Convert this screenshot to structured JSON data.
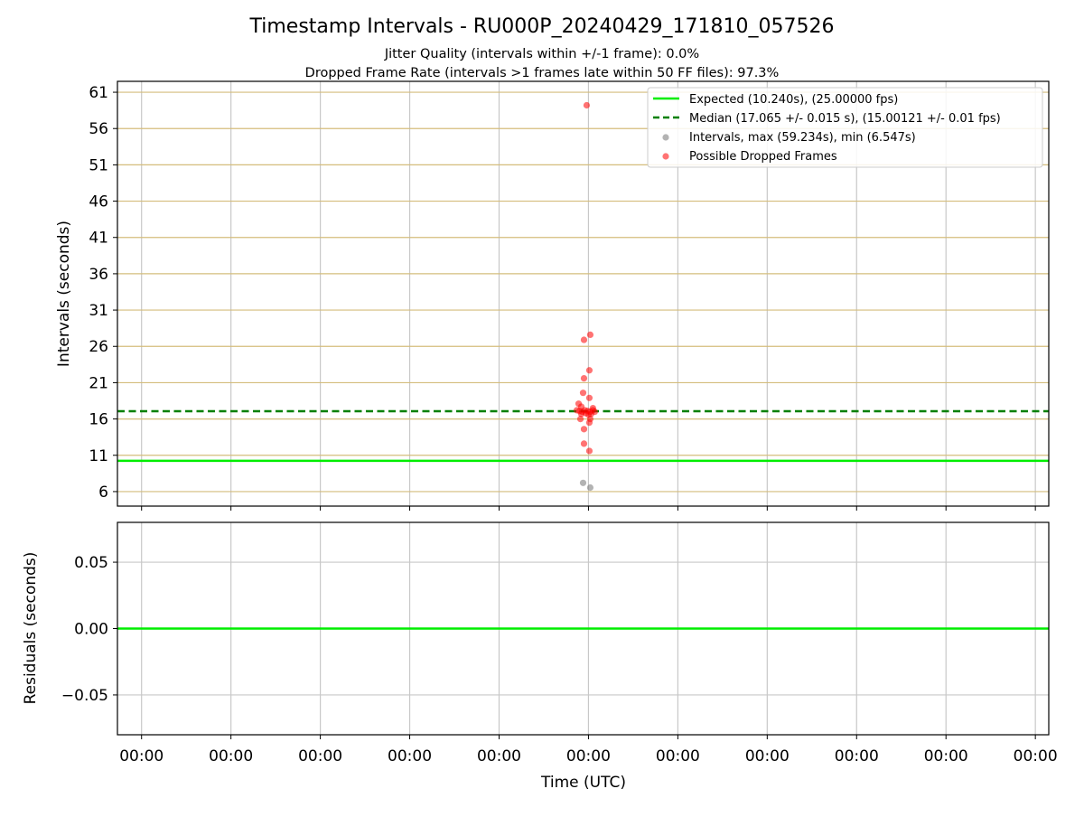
{
  "title": "Timestamp Intervals - RU000P_20240429_171810_057526",
  "subtitle1": "Jitter Quality (intervals within +/-1 frame): 0.0%",
  "subtitle2": "Dropped Frame Rate (intervals >1 frames late within 50 FF files): 97.3%",
  "colors": {
    "expected": "#00ee00",
    "median": "#008000",
    "intervals": "#808080",
    "dropped": "#ff0000",
    "ygrid_top": "#d4bd7c",
    "grid": "#c8c8c8"
  },
  "chart_data": [
    {
      "type": "scatter",
      "ylabel": "Intervals (seconds)",
      "ylim": [
        4,
        62.5
      ],
      "yticks": [
        6,
        11,
        16,
        21,
        26,
        31,
        36,
        41,
        46,
        51,
        56,
        61
      ],
      "ytick_labels": [
        "6",
        "11",
        "16",
        "21",
        "26",
        "31",
        "36",
        "41",
        "46",
        "51",
        "56",
        "61"
      ],
      "xticks": [
        0,
        1,
        2,
        3,
        4,
        5,
        6,
        7,
        8,
        9,
        10
      ],
      "xtick_labels": [
        "00:00",
        "00:00",
        "00:00",
        "00:00",
        "00:00",
        "00:00",
        "00:00",
        "00:00",
        "00:00",
        "00:00",
        "00:00"
      ],
      "xlim": [
        -0.27,
        10.15
      ],
      "legend_position": "top-right",
      "grid": true,
      "hlines": [
        {
          "name": "Expected (10.240s), (25.00000 fps)",
          "y": 10.24,
          "style": "solid",
          "color": "#00ee00"
        },
        {
          "name": "Median (17.065 +/- 0.015 s), (15.00121 +/- 0.01 fps)",
          "y": 17.065,
          "style": "dashed",
          "color": "#008000"
        }
      ],
      "series": [
        {
          "name": "Intervals, max (59.234s), min (6.547s)",
          "color": "#808080",
          "points": [
            [
              4.94,
              7.2
            ],
            [
              5.02,
              6.55
            ]
          ]
        },
        {
          "name": "Possible Dropped Frames",
          "color": "#ff0000",
          "points": [
            [
              4.98,
              59.2
            ],
            [
              4.95,
              26.9
            ],
            [
              5.02,
              27.6
            ],
            [
              5.01,
              22.7
            ],
            [
              4.95,
              21.6
            ],
            [
              4.94,
              19.6
            ],
            [
              5.01,
              18.9
            ],
            [
              4.89,
              18.1
            ],
            [
              4.92,
              17.7
            ],
            [
              5.05,
              17.5
            ],
            [
              4.87,
              17.2
            ],
            [
              4.9,
              17.1
            ],
            [
              4.93,
              17.0
            ],
            [
              4.96,
              17.2
            ],
            [
              4.99,
              17.1
            ],
            [
              5.02,
              17.0
            ],
            [
              5.05,
              17.2
            ],
            [
              5.07,
              17.0
            ],
            [
              4.92,
              16.7
            ],
            [
              4.97,
              16.8
            ],
            [
              5.0,
              16.6
            ],
            [
              5.03,
              16.7
            ],
            [
              4.91,
              16.0
            ],
            [
              5.02,
              16.0
            ],
            [
              5.01,
              15.5
            ],
            [
              4.95,
              14.6
            ],
            [
              4.95,
              12.6
            ],
            [
              5.01,
              11.6
            ]
          ]
        }
      ]
    },
    {
      "type": "line",
      "ylabel": "Residuals (seconds)",
      "xlabel": "Time (UTC)",
      "ylim": [
        -0.08,
        0.08
      ],
      "yticks": [
        -0.05,
        0.0,
        0.05
      ],
      "ytick_labels": [
        "−0.05",
        "0.00",
        "0.05"
      ],
      "xticks": [
        0,
        1,
        2,
        3,
        4,
        5,
        6,
        7,
        8,
        9,
        10
      ],
      "xtick_labels": [
        "00:00",
        "00:00",
        "00:00",
        "00:00",
        "00:00",
        "00:00",
        "00:00",
        "00:00",
        "00:00",
        "00:00",
        "00:00"
      ],
      "xlim": [
        -0.27,
        10.15
      ],
      "grid": true,
      "series": [
        {
          "color": "#00ee00",
          "y": 0.0
        }
      ]
    }
  ]
}
